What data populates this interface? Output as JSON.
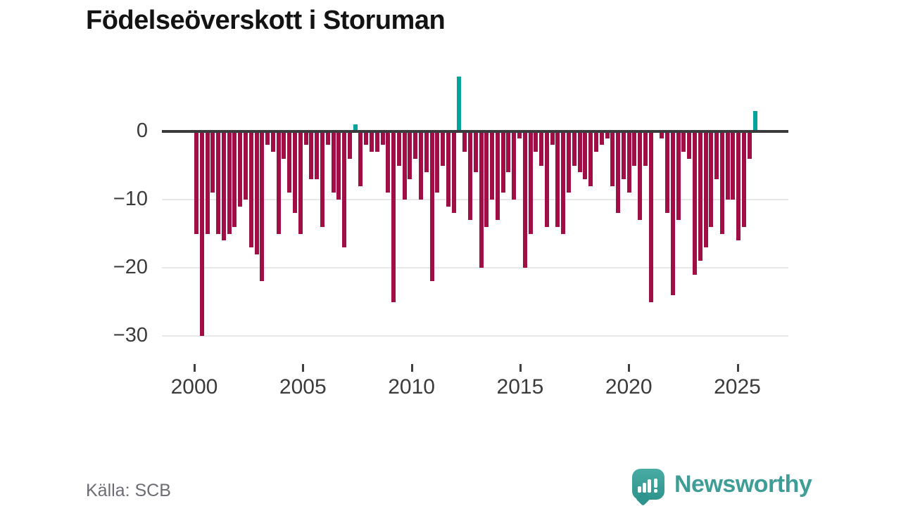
{
  "title": "Födelseöverskott i Storuman",
  "source": "Källa: SCB",
  "brand": {
    "name": "Newsworthy",
    "logo_icon": "speech-bubble-bar-chart-icon"
  },
  "colors": {
    "negative_bar": "#a00e45",
    "positive_bar": "#00a49d",
    "axis_line": "#3a3a3a",
    "gridline": "#e8e8e8",
    "tick_label": "#3b3b3b",
    "title_text": "#131313",
    "source_text": "#6c6c74",
    "brand_teal": "#3f9d97"
  },
  "y_axis": {
    "ticks": [
      0,
      -10,
      -20,
      -30
    ]
  },
  "x_axis": {
    "ticks": [
      2000,
      2005,
      2010,
      2015,
      2020,
      2025
    ]
  },
  "chart_data": {
    "type": "bar",
    "title": "Födelseöverskott i Storuman",
    "frequency": "quarterly",
    "x_start": "2000 Q1",
    "x_end": "2025 Q3",
    "ylim": [
      -30,
      8
    ],
    "grid": "horizontal",
    "legend": "none",
    "values": [
      -15,
      -30,
      -15,
      -9,
      -15,
      -16,
      -15,
      -14,
      -11,
      -10,
      -17,
      -18,
      -22,
      -2,
      -3,
      -15,
      -4,
      -9,
      -12,
      -15,
      -2,
      -7,
      -7,
      -14,
      -2,
      -9,
      -10,
      -17,
      -4,
      1,
      -8,
      -2,
      -3,
      -3,
      -2,
      -9,
      -25,
      -5,
      -10,
      -7,
      -4,
      -10,
      -6,
      -22,
      -9,
      -5,
      -11,
      -12,
      8,
      -3,
      -13,
      -6,
      -20,
      -14,
      -10,
      -13,
      -9,
      -6,
      -10,
      -1,
      -20,
      -15,
      -3,
      -5,
      -14,
      -2,
      -14,
      -15,
      -9,
      -5,
      -6,
      -7,
      -8,
      -3,
      -2,
      -1,
      -8,
      -12,
      -7,
      -9,
      -5,
      -13,
      -5,
      -25,
      0,
      -1,
      -12,
      -24,
      -13,
      -3,
      -4,
      -21,
      -19,
      -17,
      -14,
      -7,
      -15,
      -10,
      -10,
      -16,
      -14,
      -4,
      3
    ]
  }
}
